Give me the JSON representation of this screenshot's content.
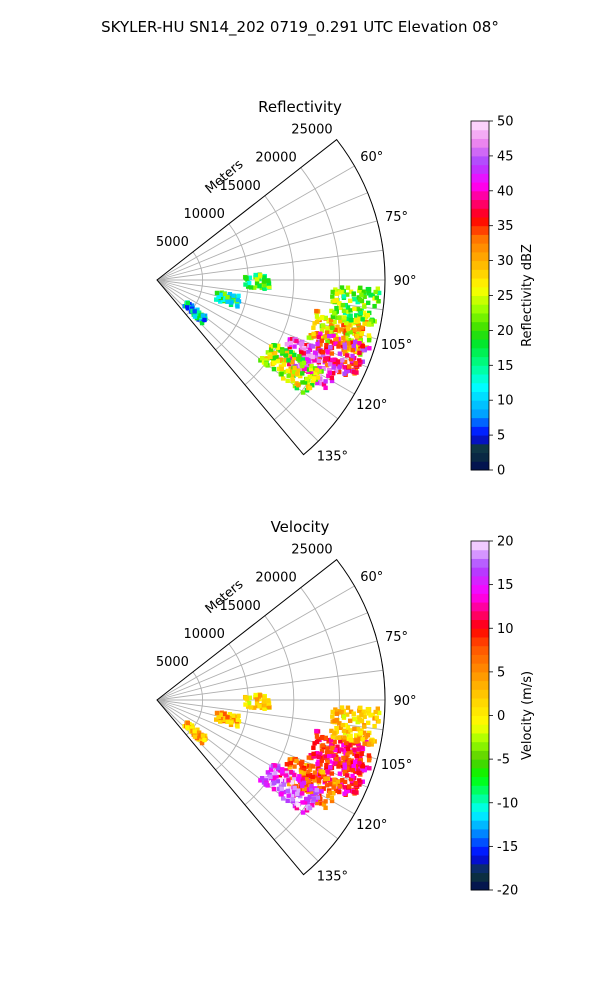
{
  "figure": {
    "suptitle": "SKYLER-HU  SN14_202  0719_0.291 UTC Elevation 08°"
  },
  "chart_data": [
    {
      "type": "heatmap",
      "projection": "polar-sector",
      "title": "Reflectivity",
      "range_axis_label": "Meters",
      "range_ticks": [
        5000,
        10000,
        15000,
        20000,
        25000
      ],
      "range_limit": [
        0,
        25000
      ],
      "azimuth_ticks": [
        "60°",
        "75°",
        "90°",
        "105°",
        "120°",
        "135°"
      ],
      "azimuth_ticks_deg": [
        60,
        75,
        90,
        105,
        120,
        135
      ],
      "azimuth_limit_deg": [
        52,
        140
      ],
      "grid": true,
      "colorbar": {
        "label": "Reflectivity dBZ",
        "ticks": [
          0,
          5,
          10,
          15,
          20,
          25,
          30,
          35,
          40,
          45,
          50
        ],
        "range": [
          0,
          50
        ]
      },
      "echo_regions": [
        {
          "az_deg": 130,
          "range_m": 5500,
          "value": 12
        },
        {
          "az_deg": 105,
          "range_m": 8000,
          "value": 16
        },
        {
          "az_deg": 91,
          "range_m": 11000,
          "value": 18
        },
        {
          "az_deg": 106,
          "range_m": 21000,
          "value": 28
        },
        {
          "az_deg": 112,
          "range_m": 22000,
          "value": 38
        },
        {
          "az_deg": 118,
          "range_m": 19000,
          "value": 42
        },
        {
          "az_deg": 123,
          "range_m": 17500,
          "value": 24
        },
        {
          "az_deg": 97,
          "range_m": 22500,
          "value": 21
        }
      ]
    },
    {
      "type": "heatmap",
      "projection": "polar-sector",
      "title": "Velocity",
      "range_axis_label": "Meters",
      "range_ticks": [
        5000,
        10000,
        15000,
        20000,
        25000
      ],
      "range_limit": [
        0,
        25000
      ],
      "azimuth_ticks": [
        "60°",
        "75°",
        "90°",
        "105°",
        "120°",
        "135°"
      ],
      "azimuth_ticks_deg": [
        60,
        75,
        90,
        105,
        120,
        135
      ],
      "azimuth_limit_deg": [
        52,
        140
      ],
      "grid": true,
      "colorbar": {
        "label": "Velocity (m/s)",
        "ticks": [
          -20,
          -15,
          -10,
          -5,
          0,
          5,
          10,
          15,
          20
        ],
        "range": [
          -20,
          20
        ]
      },
      "echo_regions": [
        {
          "az_deg": 130,
          "range_m": 5500,
          "value": 3
        },
        {
          "az_deg": 105,
          "range_m": 8000,
          "value": 4
        },
        {
          "az_deg": 91,
          "range_m": 11000,
          "value": 1
        },
        {
          "az_deg": 106,
          "range_m": 21000,
          "value": 10
        },
        {
          "az_deg": 112,
          "range_m": 22000,
          "value": 11
        },
        {
          "az_deg": 118,
          "range_m": 19000,
          "value": 6
        },
        {
          "az_deg": 123,
          "range_m": 17500,
          "value": 16
        },
        {
          "az_deg": 97,
          "range_m": 22500,
          "value": 2
        }
      ]
    }
  ]
}
